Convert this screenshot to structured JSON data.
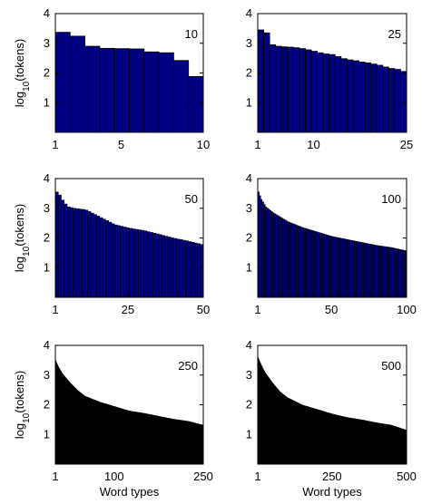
{
  "figure": {
    "ylabel_base": "log",
    "ylabel_sub": "10",
    "ylabel_rest": "(tokens)",
    "xlabel": "Word types"
  },
  "chart_data": [
    {
      "type": "bar",
      "annotation": "10",
      "xlim": [
        1,
        10
      ],
      "ylim": [
        0,
        4
      ],
      "xticks": [
        1,
        5,
        10
      ],
      "yticks": [
        1,
        2,
        3,
        4
      ],
      "color": "#000080",
      "edgecolor": "#000000",
      "n": 10,
      "values": [
        3.37,
        3.24,
        2.9,
        2.83,
        2.82,
        2.81,
        2.71,
        2.68,
        2.42,
        1.88
      ]
    },
    {
      "type": "bar",
      "annotation": "25",
      "xlim": [
        1,
        25
      ],
      "ylim": [
        0,
        4
      ],
      "xticks": [
        1,
        10,
        25
      ],
      "yticks": [
        1,
        2,
        3,
        4
      ],
      "color": "#000080",
      "edgecolor": "#000000",
      "n": 25,
      "values": [
        3.45,
        3.35,
        2.95,
        2.9,
        2.88,
        2.87,
        2.85,
        2.82,
        2.78,
        2.73,
        2.68,
        2.64,
        2.62,
        2.55,
        2.48,
        2.44,
        2.41,
        2.37,
        2.34,
        2.3,
        2.26,
        2.2,
        2.15,
        2.12,
        2.05
      ]
    },
    {
      "type": "bar",
      "annotation": "50",
      "xlim": [
        1,
        50
      ],
      "ylim": [
        0,
        4
      ],
      "xticks": [
        1,
        25,
        50
      ],
      "yticks": [
        1,
        2,
        3,
        4
      ],
      "color": "#000080",
      "edgecolor": "#000000",
      "n": 50,
      "curve": [
        [
          0,
          3.55
        ],
        [
          0.02,
          3.45
        ],
        [
          0.05,
          3.2
        ],
        [
          0.08,
          3.05
        ],
        [
          0.12,
          3.0
        ],
        [
          0.2,
          2.95
        ],
        [
          0.3,
          2.7
        ],
        [
          0.4,
          2.45
        ],
        [
          0.5,
          2.33
        ],
        [
          0.6,
          2.25
        ],
        [
          0.7,
          2.13
        ],
        [
          0.8,
          2.0
        ],
        [
          0.9,
          1.9
        ],
        [
          1.0,
          1.78
        ]
      ]
    },
    {
      "type": "bar",
      "annotation": "100",
      "xlim": [
        1,
        100
      ],
      "ylim": [
        0,
        4
      ],
      "xticks": [
        1,
        50,
        100
      ],
      "yticks": [
        1,
        2,
        3,
        4
      ],
      "color": "#000080",
      "edgecolor": "#000000",
      "n": 100,
      "curve": [
        [
          0,
          3.55
        ],
        [
          0.02,
          3.3
        ],
        [
          0.05,
          3.05
        ],
        [
          0.1,
          2.85
        ],
        [
          0.2,
          2.55
        ],
        [
          0.3,
          2.35
        ],
        [
          0.4,
          2.2
        ],
        [
          0.5,
          2.05
        ],
        [
          0.6,
          1.95
        ],
        [
          0.7,
          1.85
        ],
        [
          0.8,
          1.75
        ],
        [
          0.9,
          1.68
        ],
        [
          1.0,
          1.57
        ]
      ]
    },
    {
      "type": "area",
      "annotation": "250",
      "xlim": [
        1,
        250
      ],
      "ylim": [
        0,
        4
      ],
      "xticks": [
        1,
        100,
        250
      ],
      "yticks": [
        1,
        2,
        3,
        4
      ],
      "color": "#000000",
      "curve": [
        [
          0,
          3.55
        ],
        [
          0.02,
          3.3
        ],
        [
          0.05,
          3.05
        ],
        [
          0.1,
          2.75
        ],
        [
          0.15,
          2.5
        ],
        [
          0.2,
          2.3
        ],
        [
          0.3,
          2.1
        ],
        [
          0.4,
          1.95
        ],
        [
          0.5,
          1.8
        ],
        [
          0.6,
          1.72
        ],
        [
          0.7,
          1.62
        ],
        [
          0.8,
          1.52
        ],
        [
          0.9,
          1.45
        ],
        [
          1.0,
          1.32
        ]
      ]
    },
    {
      "type": "area",
      "annotation": "500",
      "xlim": [
        1,
        500
      ],
      "ylim": [
        0,
        4
      ],
      "xticks": [
        1,
        250,
        500
      ],
      "yticks": [
        1,
        2,
        3,
        4
      ],
      "color": "#000000",
      "curve": [
        [
          0,
          3.65
        ],
        [
          0.02,
          3.4
        ],
        [
          0.05,
          3.1
        ],
        [
          0.1,
          2.75
        ],
        [
          0.15,
          2.45
        ],
        [
          0.2,
          2.25
        ],
        [
          0.3,
          2.0
        ],
        [
          0.4,
          1.85
        ],
        [
          0.5,
          1.7
        ],
        [
          0.6,
          1.58
        ],
        [
          0.7,
          1.5
        ],
        [
          0.8,
          1.4
        ],
        [
          0.9,
          1.32
        ],
        [
          1.0,
          1.15
        ]
      ]
    }
  ]
}
